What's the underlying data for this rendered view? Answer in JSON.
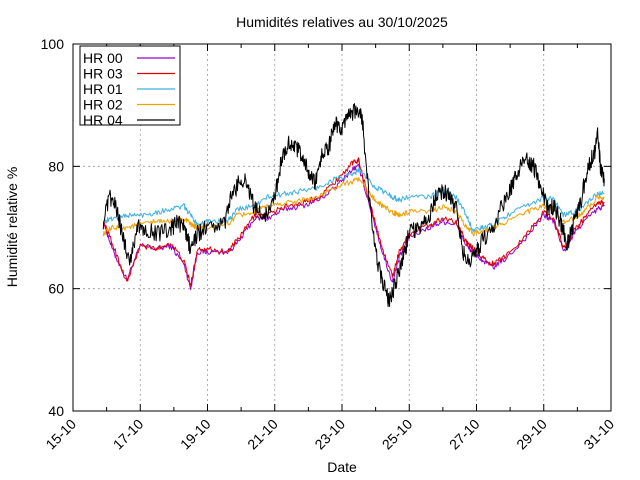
{
  "chart_data": {
    "type": "line",
    "title": "Humidités relatives  au 30/10/2025",
    "xlabel": "Date",
    "ylabel": "Humidité relative %",
    "ylim": [
      40,
      100
    ],
    "yticks": [
      40,
      60,
      80,
      100
    ],
    "xlim": [
      "15-10",
      "31-10"
    ],
    "xticks": [
      "15-10",
      "17-10",
      "19-10",
      "21-10",
      "23-10",
      "25-10",
      "27-10",
      "29-10",
      "31-10"
    ],
    "grid": true,
    "legend_position": "top-left",
    "x_day_start": 15,
    "series": [
      {
        "name": "HR 00",
        "color": "#9400d3",
        "points": [
          [
            15.9,
            71
          ],
          [
            16.2,
            66
          ],
          [
            16.6,
            61.5
          ],
          [
            17.0,
            67
          ],
          [
            17.5,
            66.5
          ],
          [
            17.9,
            67
          ],
          [
            18.3,
            64
          ],
          [
            18.5,
            60
          ],
          [
            18.7,
            66
          ],
          [
            19.0,
            66
          ],
          [
            19.6,
            66
          ],
          [
            19.9,
            67.5
          ],
          [
            20.4,
            71.5
          ],
          [
            20.8,
            71.5
          ],
          [
            21.3,
            73
          ],
          [
            21.8,
            73.5
          ],
          [
            22.3,
            74.5
          ],
          [
            22.8,
            76.5
          ],
          [
            23.3,
            79.5
          ],
          [
            23.5,
            80
          ],
          [
            23.9,
            72
          ],
          [
            24.2,
            66
          ],
          [
            24.5,
            61
          ],
          [
            24.7,
            65
          ],
          [
            25.0,
            68.5
          ],
          [
            25.6,
            70
          ],
          [
            26.0,
            71
          ],
          [
            26.4,
            70.5
          ],
          [
            26.7,
            67
          ],
          [
            26.9,
            66
          ],
          [
            27.2,
            64.5
          ],
          [
            27.5,
            63.5
          ],
          [
            27.9,
            65
          ],
          [
            28.5,
            68.5
          ],
          [
            29.0,
            72
          ],
          [
            29.3,
            71
          ],
          [
            29.6,
            66
          ],
          [
            29.9,
            69
          ],
          [
            30.2,
            71
          ],
          [
            30.6,
            73
          ],
          [
            30.8,
            73.5
          ]
        ]
      },
      {
        "name": "HR 03",
        "color": "#dd0000",
        "points": [
          [
            15.9,
            71
          ],
          [
            16.2,
            67
          ],
          [
            16.6,
            61
          ],
          [
            17.0,
            67
          ],
          [
            17.5,
            66.5
          ],
          [
            17.9,
            67.5
          ],
          [
            18.3,
            64.5
          ],
          [
            18.5,
            60.5
          ],
          [
            18.7,
            66.5
          ],
          [
            19.0,
            66.5
          ],
          [
            19.6,
            66
          ],
          [
            19.9,
            68
          ],
          [
            20.4,
            72
          ],
          [
            20.8,
            72
          ],
          [
            21.3,
            73.5
          ],
          [
            21.8,
            74
          ],
          [
            22.3,
            75
          ],
          [
            22.8,
            77.5
          ],
          [
            23.3,
            80.5
          ],
          [
            23.5,
            81
          ],
          [
            23.9,
            72.5
          ],
          [
            24.2,
            66.5
          ],
          [
            24.5,
            62
          ],
          [
            24.7,
            66
          ],
          [
            25.0,
            69
          ],
          [
            25.6,
            70.5
          ],
          [
            26.0,
            71.5
          ],
          [
            26.4,
            71
          ],
          [
            26.7,
            67.5
          ],
          [
            26.9,
            66.5
          ],
          [
            27.2,
            65
          ],
          [
            27.5,
            64
          ],
          [
            27.9,
            65.5
          ],
          [
            28.5,
            69
          ],
          [
            29.0,
            72.5
          ],
          [
            29.3,
            71.5
          ],
          [
            29.6,
            66.5
          ],
          [
            29.9,
            69.5
          ],
          [
            30.2,
            71.5
          ],
          [
            30.6,
            74
          ],
          [
            30.8,
            74
          ]
        ]
      },
      {
        "name": "HR 01",
        "color": "#40b0e0",
        "points": [
          [
            15.9,
            71
          ],
          [
            16.2,
            71.5
          ],
          [
            16.6,
            72
          ],
          [
            17.0,
            72
          ],
          [
            17.5,
            72.5
          ],
          [
            17.9,
            73
          ],
          [
            18.3,
            73.5
          ],
          [
            18.5,
            72
          ],
          [
            18.7,
            70.5
          ],
          [
            19.0,
            71
          ],
          [
            19.6,
            71
          ],
          [
            19.9,
            73
          ],
          [
            20.4,
            73.5
          ],
          [
            20.8,
            75
          ],
          [
            21.3,
            75.5
          ],
          [
            21.8,
            76
          ],
          [
            22.3,
            76.5
          ],
          [
            22.8,
            78
          ],
          [
            23.3,
            78.5
          ],
          [
            23.5,
            79.5
          ],
          [
            23.9,
            77
          ],
          [
            24.2,
            76
          ],
          [
            24.5,
            75
          ],
          [
            24.7,
            74.5
          ],
          [
            25.0,
            75
          ],
          [
            25.6,
            75
          ],
          [
            26.0,
            76
          ],
          [
            26.4,
            75
          ],
          [
            26.7,
            72
          ],
          [
            26.9,
            69.5
          ],
          [
            27.2,
            70
          ],
          [
            27.5,
            70.5
          ],
          [
            27.9,
            72
          ],
          [
            28.5,
            73.5
          ],
          [
            29.0,
            75
          ],
          [
            29.3,
            74.5
          ],
          [
            29.6,
            72
          ],
          [
            29.9,
            72.5
          ],
          [
            30.2,
            73.5
          ],
          [
            30.6,
            75.5
          ],
          [
            30.8,
            75.5
          ]
        ]
      },
      {
        "name": "HR 02",
        "color": "#f0a000",
        "points": [
          [
            15.9,
            69
          ],
          [
            16.2,
            70
          ],
          [
            16.6,
            70
          ],
          [
            17.0,
            70.5
          ],
          [
            17.5,
            71
          ],
          [
            17.9,
            71
          ],
          [
            18.3,
            71.5
          ],
          [
            18.5,
            70.5
          ],
          [
            18.7,
            70
          ],
          [
            19.0,
            70
          ],
          [
            19.6,
            70.5
          ],
          [
            19.9,
            72
          ],
          [
            20.4,
            72.5
          ],
          [
            20.8,
            73.5
          ],
          [
            21.3,
            74
          ],
          [
            21.8,
            74.5
          ],
          [
            22.3,
            75
          ],
          [
            22.8,
            76.5
          ],
          [
            23.3,
            77.5
          ],
          [
            23.5,
            78
          ],
          [
            23.9,
            75
          ],
          [
            24.2,
            73.5
          ],
          [
            24.5,
            72.5
          ],
          [
            24.7,
            72
          ],
          [
            25.0,
            72.5
          ],
          [
            25.6,
            72.5
          ],
          [
            26.0,
            73.5
          ],
          [
            26.4,
            72.5
          ],
          [
            26.7,
            70
          ],
          [
            26.9,
            69
          ],
          [
            27.2,
            69.5
          ],
          [
            27.5,
            70
          ],
          [
            27.9,
            71
          ],
          [
            28.5,
            72.5
          ],
          [
            29.0,
            73.5
          ],
          [
            29.3,
            73
          ],
          [
            29.6,
            71
          ],
          [
            29.9,
            71.5
          ],
          [
            30.2,
            72.5
          ],
          [
            30.6,
            75
          ],
          [
            30.8,
            75
          ]
        ]
      },
      {
        "name": "HR 04",
        "color": "#000000",
        "points": [
          [
            15.9,
            71
          ],
          [
            16.1,
            75
          ],
          [
            16.3,
            73
          ],
          [
            16.5,
            68
          ],
          [
            16.7,
            64.5
          ],
          [
            16.9,
            70
          ],
          [
            17.1,
            70
          ],
          [
            17.5,
            69
          ],
          [
            17.9,
            69.5
          ],
          [
            18.1,
            71
          ],
          [
            18.3,
            70
          ],
          [
            18.5,
            66.5
          ],
          [
            18.7,
            69
          ],
          [
            19.0,
            70
          ],
          [
            19.5,
            70.5
          ],
          [
            19.7,
            75
          ],
          [
            20.0,
            78
          ],
          [
            20.2,
            77
          ],
          [
            20.4,
            73
          ],
          [
            20.7,
            72
          ],
          [
            21.0,
            75
          ],
          [
            21.2,
            81
          ],
          [
            21.4,
            84
          ],
          [
            21.6,
            83
          ],
          [
            21.8,
            82
          ],
          [
            22.0,
            79
          ],
          [
            22.2,
            77
          ],
          [
            22.4,
            82
          ],
          [
            22.6,
            83
          ],
          [
            22.8,
            87
          ],
          [
            23.0,
            86
          ],
          [
            23.2,
            88
          ],
          [
            23.4,
            89
          ],
          [
            23.6,
            88
          ],
          [
            23.8,
            75
          ],
          [
            24.0,
            66
          ],
          [
            24.2,
            61
          ],
          [
            24.4,
            58
          ],
          [
            24.6,
            61
          ],
          [
            24.8,
            65
          ],
          [
            25.0,
            69
          ],
          [
            25.3,
            70
          ],
          [
            25.6,
            72
          ],
          [
            25.8,
            75
          ],
          [
            26.0,
            76
          ],
          [
            26.2,
            75
          ],
          [
            26.4,
            73
          ],
          [
            26.6,
            66
          ],
          [
            26.8,
            64
          ],
          [
            27.0,
            66
          ],
          [
            27.2,
            68
          ],
          [
            27.5,
            70
          ],
          [
            27.8,
            74
          ],
          [
            28.0,
            76
          ],
          [
            28.2,
            79
          ],
          [
            28.5,
            81
          ],
          [
            28.7,
            80
          ],
          [
            28.9,
            77
          ],
          [
            29.1,
            73
          ],
          [
            29.3,
            73.5
          ],
          [
            29.5,
            71
          ],
          [
            29.7,
            67
          ],
          [
            29.9,
            71
          ],
          [
            30.1,
            74
          ],
          [
            30.3,
            80
          ],
          [
            30.5,
            82
          ],
          [
            30.6,
            86
          ],
          [
            30.7,
            79
          ],
          [
            30.8,
            78
          ]
        ]
      }
    ]
  }
}
